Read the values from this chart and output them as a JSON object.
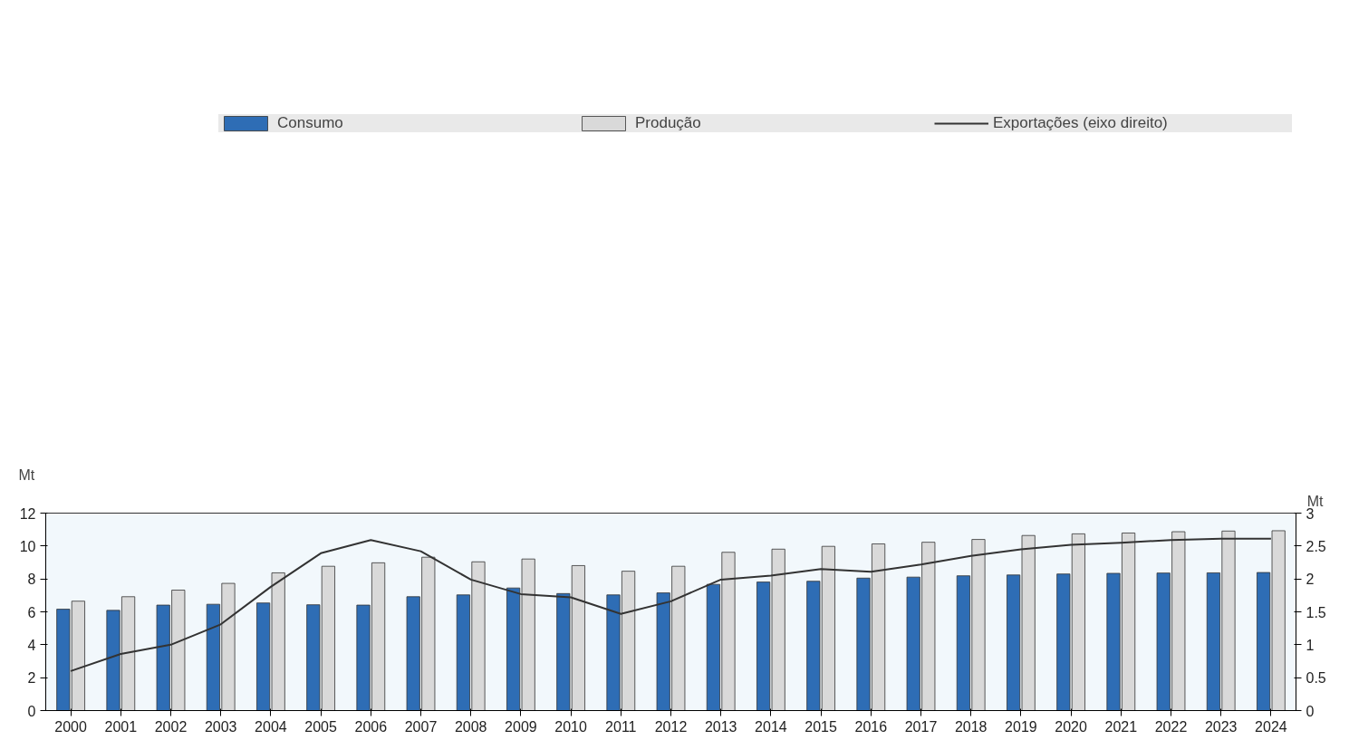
{
  "chart_data": {
    "type": "bar",
    "categories": [
      "2000",
      "2001",
      "2002",
      "2003",
      "2004",
      "2005",
      "2006",
      "2007",
      "2008",
      "2009",
      "2010",
      "2011",
      "2012",
      "2013",
      "2014",
      "2015",
      "2016",
      "2017",
      "2018",
      "2019",
      "2020",
      "2021",
      "2022",
      "2023",
      "2024"
    ],
    "series": [
      {
        "name": "Consumo",
        "color": "#2e6db5",
        "values": [
          6.16,
          6.09,
          6.41,
          6.46,
          6.54,
          6.43,
          6.41,
          6.92,
          7.03,
          7.45,
          7.11,
          7.03,
          7.15,
          7.67,
          7.81,
          7.86,
          8.05,
          8.11,
          8.19,
          8.24,
          8.3,
          8.34,
          8.36,
          8.37,
          8.39
        ]
      },
      {
        "name": "Produção",
        "color": "#d9d9d9",
        "values": [
          6.65,
          6.92,
          7.32,
          7.73,
          8.37,
          8.77,
          8.98,
          9.32,
          9.04,
          9.21,
          8.81,
          8.47,
          8.77,
          9.62,
          9.81,
          9.98,
          10.13,
          10.23,
          10.4,
          10.64,
          10.74,
          10.79,
          10.87,
          10.91,
          10.93
        ]
      },
      {
        "name": "Exportações (eixo direito)",
        "type": "line",
        "axis": "y2",
        "color": "#333333",
        "values": [
          0.6,
          0.86,
          1.0,
          1.31,
          1.88,
          2.39,
          2.59,
          2.42,
          1.99,
          1.77,
          1.72,
          1.47,
          1.66,
          1.99,
          2.05,
          2.15,
          2.11,
          2.22,
          2.35,
          2.45,
          2.52,
          2.55,
          2.59,
          2.61,
          2.61
        ]
      }
    ],
    "ylabel": "Mt",
    "y2label": "Mt",
    "ylim": [
      0,
      12
    ],
    "yticks": [
      0,
      2,
      4,
      6,
      8,
      10,
      12
    ],
    "y2lim": [
      0,
      3
    ],
    "y2ticks": [
      0,
      {
        "value": 0.5,
        "label": "0.5"
      },
      1,
      {
        "value": 1.5,
        "label": "1.5"
      },
      2,
      {
        "value": 2.5,
        "label": "2.5"
      },
      3
    ],
    "grid": false,
    "legend": "top"
  }
}
